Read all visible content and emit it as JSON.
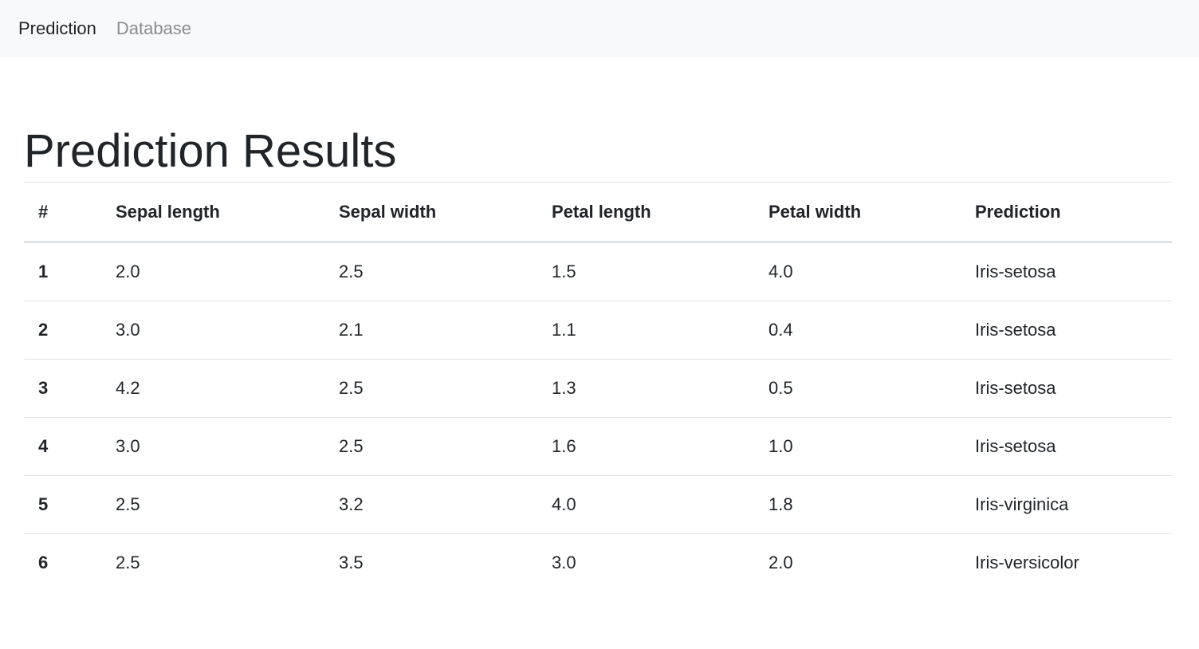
{
  "nav": {
    "items": [
      {
        "label": "Prediction",
        "active": true
      },
      {
        "label": "Database",
        "active": false
      }
    ]
  },
  "page": {
    "title": "Prediction Results"
  },
  "table": {
    "headers": [
      "#",
      "Sepal length",
      "Sepal width",
      "Petal length",
      "Petal width",
      "Prediction"
    ],
    "rows": [
      [
        "1",
        "2.0",
        "2.5",
        "1.5",
        "4.0",
        "Iris-setosa"
      ],
      [
        "2",
        "3.0",
        "2.1",
        "1.1",
        "0.4",
        "Iris-setosa"
      ],
      [
        "3",
        "4.2",
        "2.5",
        "1.3",
        "0.5",
        "Iris-setosa"
      ],
      [
        "4",
        "3.0",
        "2.5",
        "1.6",
        "1.0",
        "Iris-setosa"
      ],
      [
        "5",
        "2.5",
        "3.2",
        "4.0",
        "1.8",
        "Iris-virginica"
      ],
      [
        "6",
        "2.5",
        "3.5",
        "3.0",
        "2.0",
        "Iris-versicolor"
      ]
    ]
  },
  "colors": {
    "navbar_bg": "#f8f9fa",
    "text": "#212529",
    "muted_link": "#8a8c8f",
    "border": "#dee2e6"
  }
}
